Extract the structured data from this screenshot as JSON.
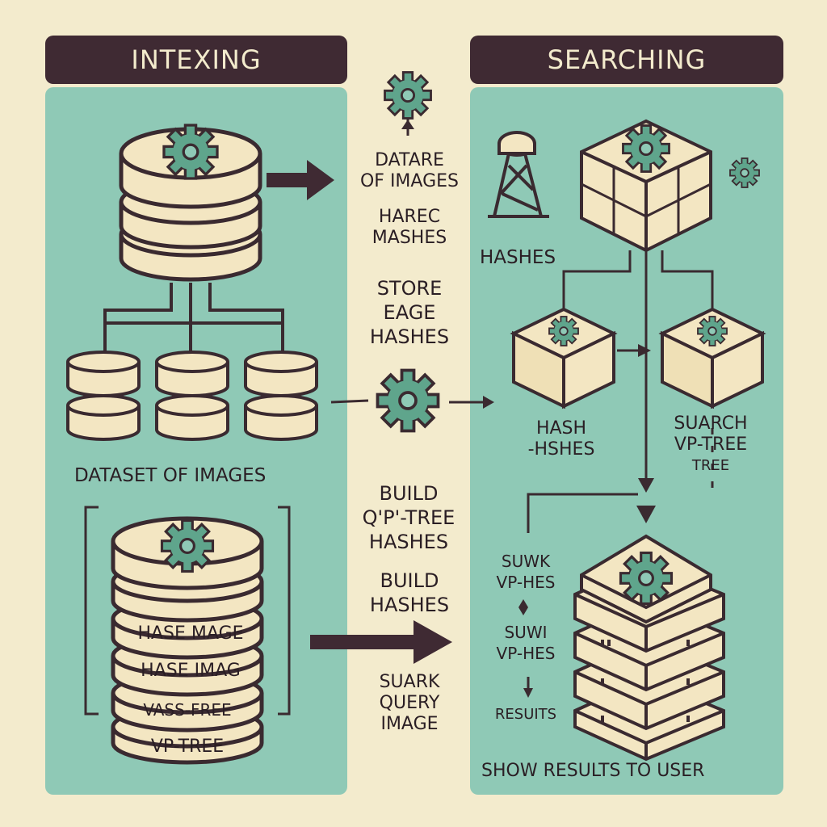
{
  "headers": {
    "indexing": "INTEXING",
    "searching": "SEARCHING"
  },
  "indexing": {
    "dataset_label": "DATASET OF IMAGES",
    "stack_labels": [
      "HASE MAGE",
      "HASE IMAG",
      "VASS-FREE",
      "VP-TREE"
    ]
  },
  "middle": {
    "group1": [
      "DATARE",
      "OF IMAGES"
    ],
    "group2": [
      "HAREC",
      "MASHES"
    ],
    "group3": [
      "STORE",
      "EAGE",
      "HASHES"
    ],
    "group4": [
      "BUILD",
      "Q'P'-TREE",
      "HASHES"
    ],
    "group5": [
      "BUILD",
      "HASHES"
    ],
    "group6": [
      "SUARK",
      "QUERY",
      "IMAGE"
    ]
  },
  "searching": {
    "hashes_label": "HASHES",
    "hash_label": [
      "HASH",
      "-HSHES"
    ],
    "search_label": [
      "SUARCH",
      "VP-TREE",
      "TREE"
    ],
    "swk_label": [
      "SUWK",
      "VP-HES"
    ],
    "swk2_label": [
      "SUWI",
      "VP-HES"
    ],
    "results_label": "RESUITS",
    "show_results": "SHOW RESULTS TO USER"
  },
  "colors": {
    "panel": "#8fc9b6",
    "header": "#3f2a33",
    "cream": "#f3e6c2",
    "outline": "#3a2a30",
    "gear": "#5fa58c",
    "background": "#f3ebcd"
  }
}
